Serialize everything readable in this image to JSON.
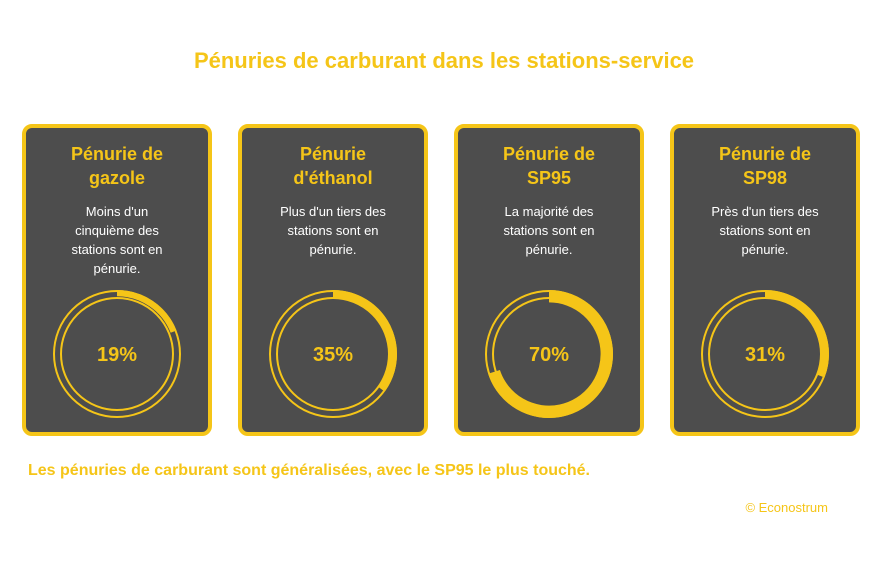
{
  "title": "Pénuries de carburant dans les stations-service",
  "footer": "Les pénuries de carburant sont généralisées, avec le SP95 le plus touché.",
  "credit": "© Econostrum",
  "colors": {
    "accent": "#f5c518",
    "card_bg": "#4d4d4d",
    "text": "#ffffff"
  },
  "chart_data": {
    "type": "donut",
    "unit": "%",
    "categories": [
      "Pénurie de gazole",
      "Pénurie d'éthanol",
      "Pénurie de SP95",
      "Pénurie de SP98"
    ],
    "values": [
      19,
      35,
      70,
      31
    ],
    "cards": [
      {
        "title_lines": [
          "Pénurie de",
          "gazole"
        ],
        "desc_lines": [
          "Moins d'un",
          "cinquième des",
          "stations sont en",
          "pénurie."
        ],
        "value": 19,
        "label": "19%"
      },
      {
        "title_lines": [
          "Pénurie",
          "d'éthanol"
        ],
        "desc_lines": [
          "Plus d'un tiers des",
          "stations sont en",
          "pénurie."
        ],
        "value": 35,
        "label": "35%"
      },
      {
        "title_lines": [
          "Pénurie de",
          "SP95"
        ],
        "desc_lines": [
          "La majorité des",
          "stations sont en",
          "pénurie."
        ],
        "value": 70,
        "label": "70%"
      },
      {
        "title_lines": [
          "Pénurie de",
          "SP98"
        ],
        "desc_lines": [
          "Près d'un tiers des",
          "stations sont en",
          "pénurie."
        ],
        "value": 31,
        "label": "31%"
      }
    ]
  }
}
